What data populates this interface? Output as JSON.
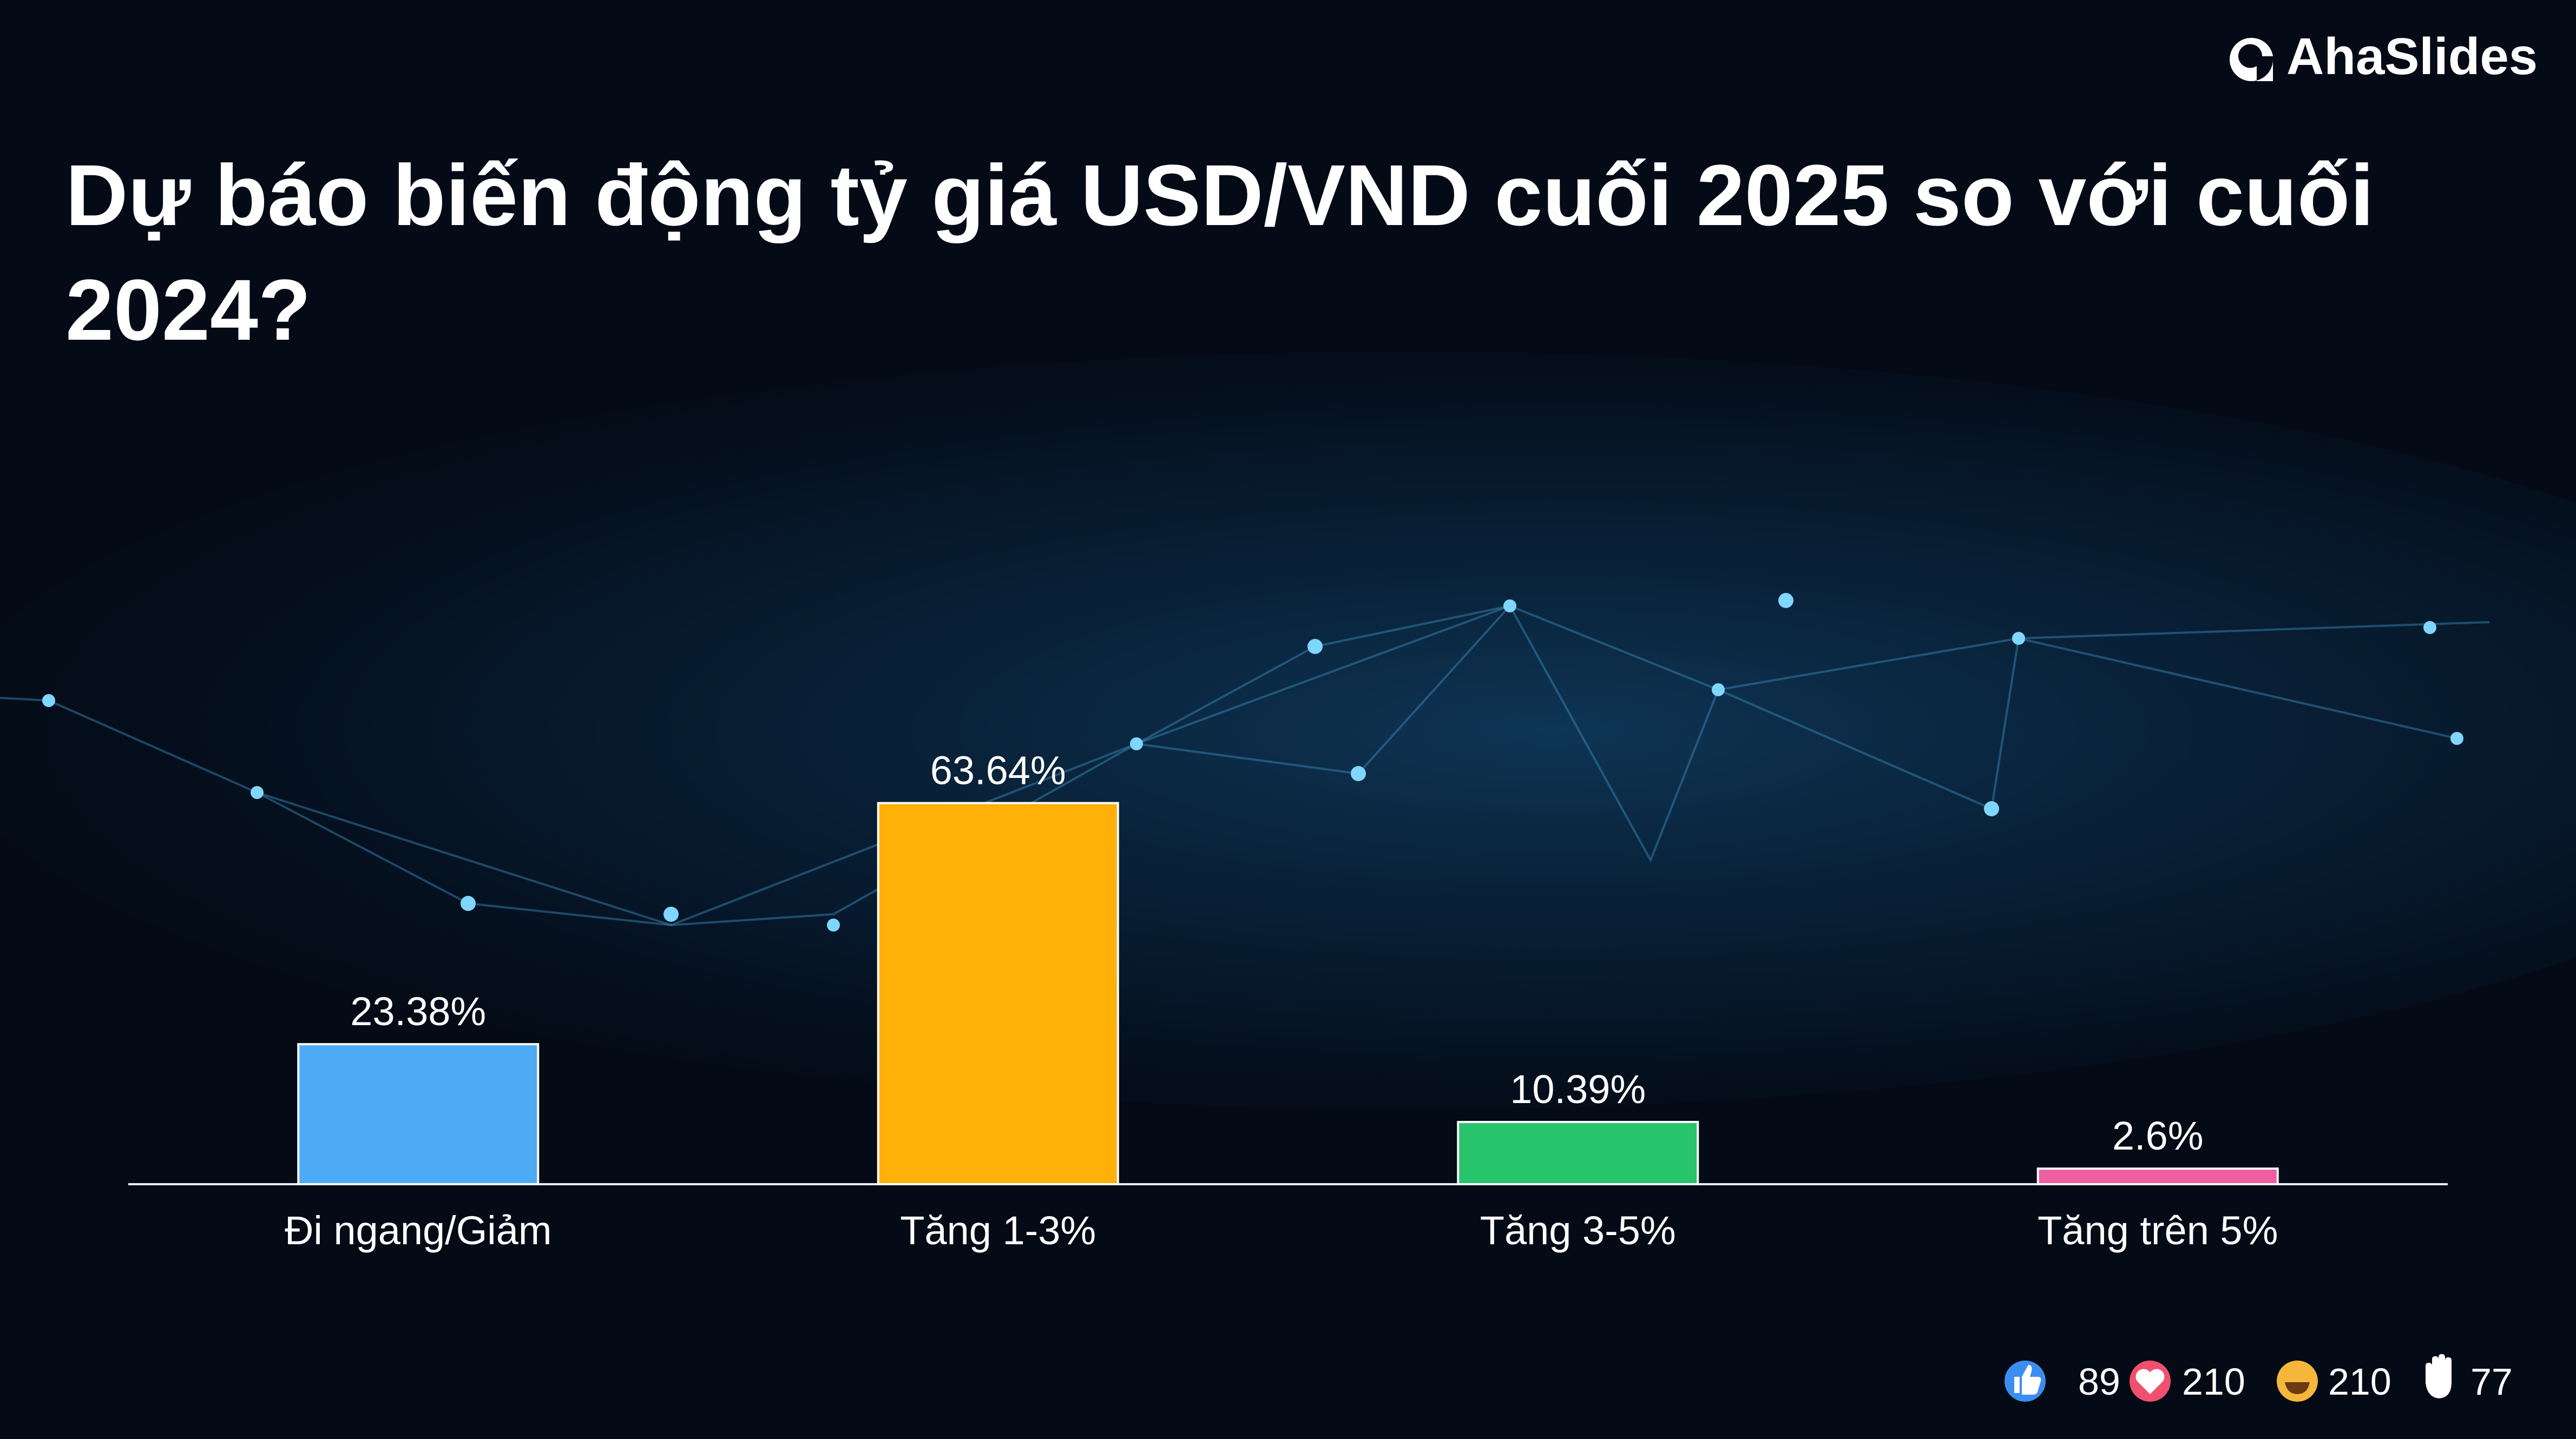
{
  "brand": "AhaSlides",
  "chart_data": {
    "type": "bar",
    "title": "Dự báo biến động tỷ giá USD/VND cuối 2025 so với cuối 2024?",
    "categories": [
      "Đi ngang/Giảm",
      "Tăng 1-3%",
      "Tăng 3-5%",
      "Tăng trên 5%"
    ],
    "values": [
      23.38,
      63.64,
      10.39,
      2.6
    ],
    "value_labels": [
      "23.38%",
      "63.64%",
      "10.39%",
      "2.6%"
    ],
    "colors": [
      "#4dabf5",
      "#ffb10a",
      "#27c46c",
      "#ee5fa1"
    ],
    "ylim": [
      0,
      100
    ]
  },
  "reactions": [
    89,
    210,
    210,
    77
  ]
}
